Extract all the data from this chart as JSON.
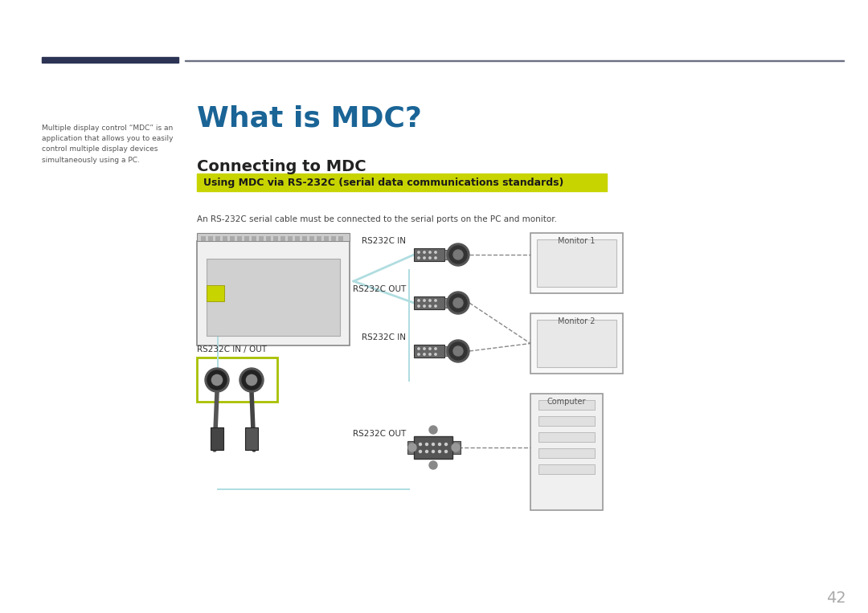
{
  "bg_color": "#ffffff",
  "page_number": "42",
  "title": "What is MDC?",
  "title_color": "#1a6496",
  "section_title": "Connecting to MDC",
  "highlight_text": "Using MDC via RS-232C (serial data communications standards)",
  "highlight_bg": "#c8d400",
  "highlight_text_color": "#1a1a1a",
  "body_text": "An RS-232C serial cable must be connected to the serial ports on the PC and monitor.",
  "sidebar_text": "Multiple display control “MDC” is an\napplication that allows you to easily\ncontrol multiple display devices\nsimultaneously using a PC.",
  "dark_bar_color": "#2d3354",
  "line_color": "#6c7080",
  "labels": {
    "rs232c_in_1": "RS232C IN",
    "rs232c_out_1": "RS232C OUT",
    "rs232c_in_2": "RS232C IN",
    "rs232c_out_2": "RS232C OUT",
    "rs232c_inout": "RS232C IN / OUT",
    "monitor1": "Monitor 1",
    "monitor2": "Monitor 2",
    "computer": "Computer"
  }
}
